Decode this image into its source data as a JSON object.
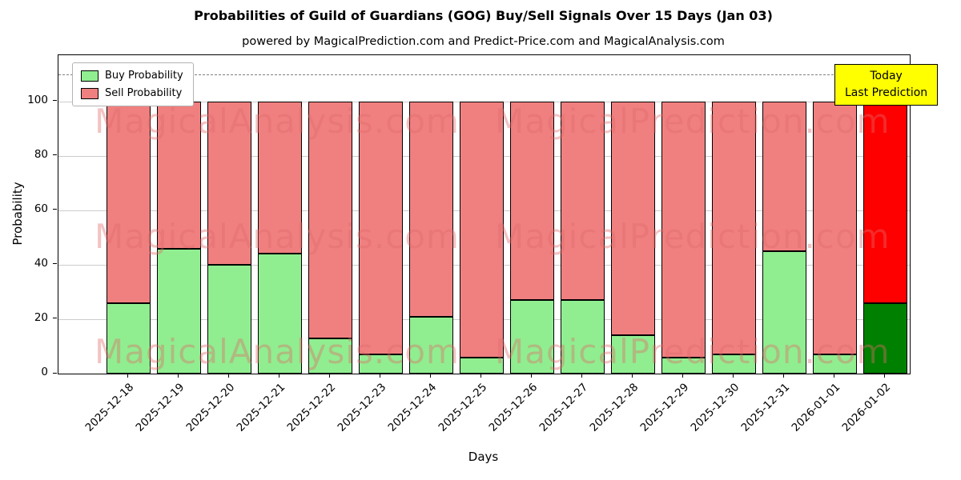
{
  "title": "Probabilities of Guild of Guardians (GOG) Buy/Sell Signals Over 15 Days (Jan 03)",
  "subtitle": "powered by MagicalPrediction.com and Predict-Price.com and MagicalAnalysis.com",
  "xlabel": "Days",
  "ylabel": "Probability",
  "annotation": {
    "line1": "Today",
    "line2": "Last Prediction"
  },
  "watermarks": [
    "MagicalAnalysis.com",
    "MagicalPrediction.com"
  ],
  "colors": {
    "buy": "#90EE90",
    "sell": "#F08080",
    "last_buy": "#008000",
    "last_sell": "#FF0000",
    "annotation_bg": "#FFFF00",
    "grid": "#CCCCCC",
    "dashed_line": "#7F7F7F",
    "watermark": "#E16969"
  },
  "chart_data": {
    "type": "bar",
    "stacked": true,
    "title": "Probabilities of Guild of Guardians (GOG) Buy/Sell Signals Over 15 Days (Jan 03)",
    "xlabel": "Days",
    "ylabel": "Probability",
    "legend_position": "upper left",
    "grid": true,
    "yticks": [
      0,
      20,
      40,
      60,
      80,
      100
    ],
    "ylim": [
      0,
      117
    ],
    "dashed_line_y": 110,
    "categories": [
      "2025-12-18",
      "2025-12-19",
      "2025-12-20",
      "2025-12-21",
      "2025-12-22",
      "2025-12-23",
      "2025-12-24",
      "2025-12-25",
      "2025-12-26",
      "2025-12-27",
      "2025-12-28",
      "2025-12-29",
      "2025-12-30",
      "2025-12-31",
      "2026-01-01",
      "2026-01-02"
    ],
    "series": [
      {
        "name": "Buy Probability",
        "color": "#90EE90",
        "values": [
          26,
          46,
          40,
          44,
          13,
          7,
          21,
          6,
          27,
          27,
          14,
          6,
          7,
          45,
          7,
          26
        ]
      },
      {
        "name": "Sell Probability",
        "color": "#F08080",
        "values": [
          74,
          54,
          60,
          56,
          87,
          93,
          79,
          94,
          73,
          73,
          86,
          94,
          93,
          55,
          93,
          74
        ]
      }
    ],
    "last_bar_colors": {
      "buy": "#008000",
      "sell": "#FF0000"
    }
  }
}
